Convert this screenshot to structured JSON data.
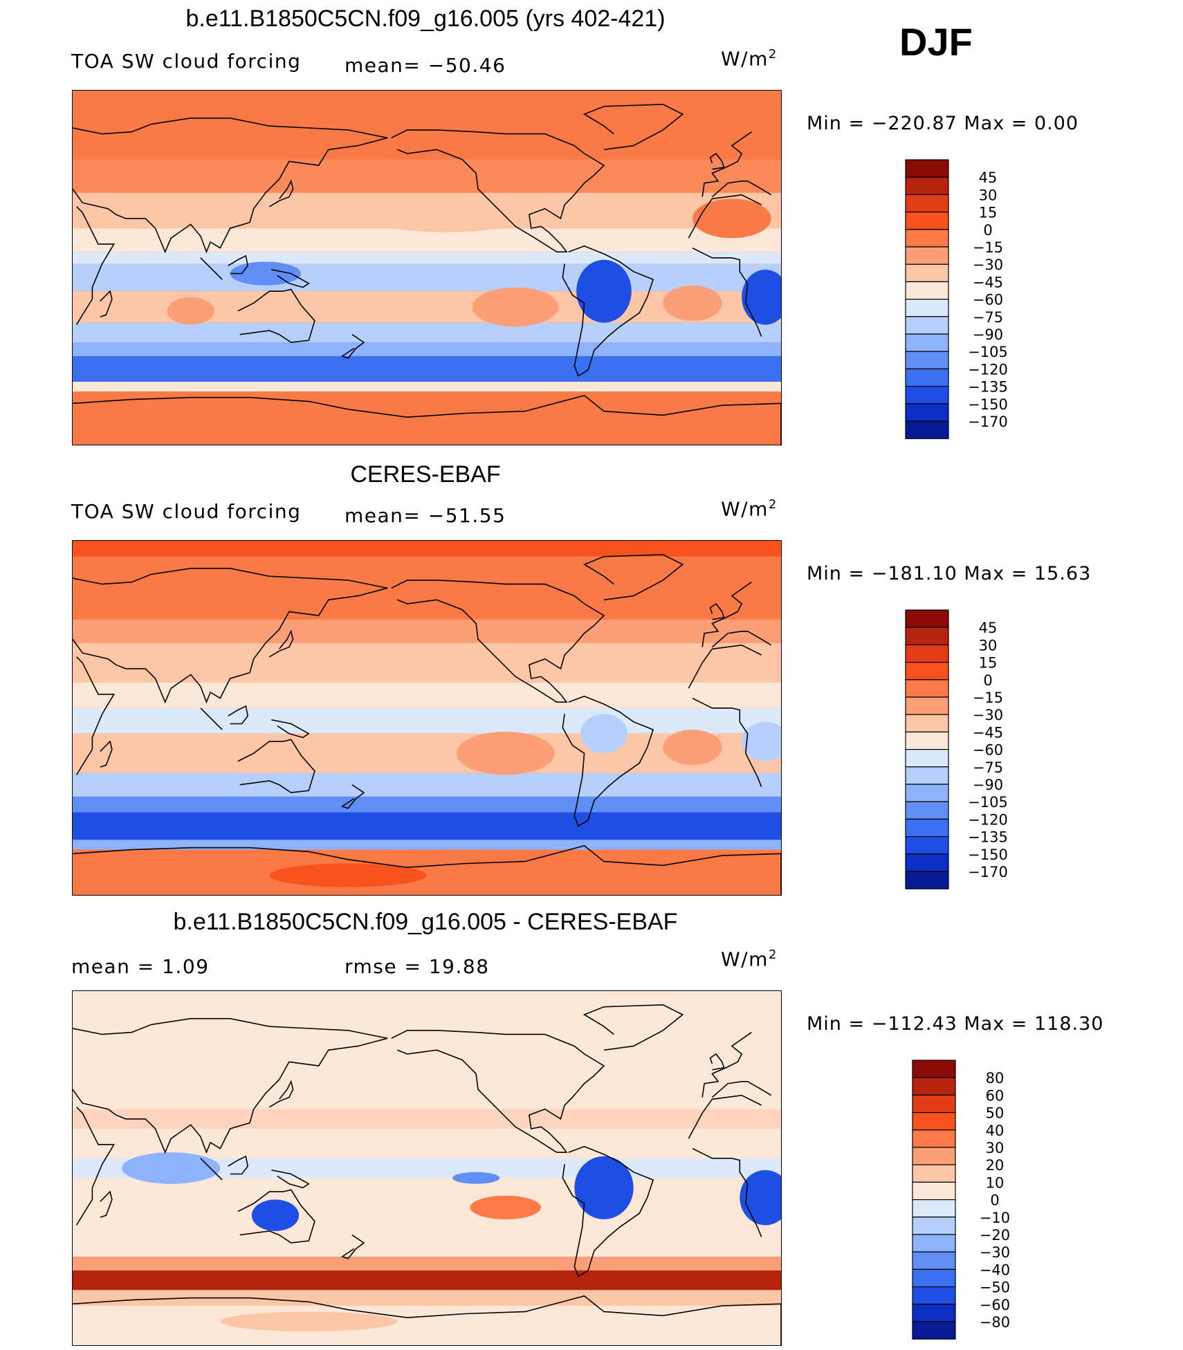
{
  "season_label": "DJF",
  "colors": {
    "land_ocean_orange": "#f97a45",
    "outline": "#000000"
  },
  "panels": [
    {
      "title": "b.e11.B1850C5CN.f09_g16.005 (yrs 402-421)",
      "left_label": "TOA SW cloud forcing",
      "stat_label": "mean=  −50.46",
      "units": "W/m",
      "units_sup": "2",
      "minmax": "Min  =  −220.87  Max  =     0.00",
      "colorbar": {
        "labels": [
          "45",
          "30",
          "15",
          "0",
          "−15",
          "−30",
          "−45",
          "−60",
          "−75",
          "−90",
          "−105",
          "−120",
          "−135",
          "−150",
          "−170"
        ],
        "colors": [
          "#8b0b06",
          "#b7240d",
          "#df3b14",
          "#f8531f",
          "#fb7a47",
          "#fb9f78",
          "#fdc6a6",
          "#fde8d7",
          "#dbe9fb",
          "#b6d0fb",
          "#8eb2fb",
          "#5f8ff5",
          "#3a70f0",
          "#1e4fe5",
          "#0a2fc2",
          "#061996"
        ]
      },
      "map": {
        "base": "#f97a45",
        "bands": [
          {
            "lat_from": 90,
            "lat_to": 55,
            "color": "#f97a45"
          },
          {
            "lat_from": 55,
            "lat_to": 38,
            "color": "#fb8a5a"
          },
          {
            "lat_from": 38,
            "lat_to": 20,
            "color": "#fdc6a6"
          },
          {
            "lat_from": 20,
            "lat_to": 8,
            "color": "#fde8d7"
          },
          {
            "lat_from": 8,
            "lat_to": 2,
            "color": "#dbe9fb"
          },
          {
            "lat_from": 2,
            "lat_to": -12,
            "color": "#b6d0fb"
          },
          {
            "lat_from": -12,
            "lat_to": -28,
            "color": "#fdc6a6"
          },
          {
            "lat_from": -28,
            "lat_to": -38,
            "color": "#b6d0fb"
          },
          {
            "lat_from": -38,
            "lat_to": -45,
            "color": "#8eb2fb"
          },
          {
            "lat_from": -45,
            "lat_to": -58,
            "color": "#3a70f0"
          },
          {
            "lat_from": -58,
            "lat_to": -63,
            "color": "#fde8d7"
          },
          {
            "lat_from": -63,
            "lat_to": -90,
            "color": "#f97a45"
          }
        ],
        "blobs": [
          {
            "lon": 220,
            "lat": 28,
            "rx": 45,
            "ry": 10,
            "color": "#fdc6a6"
          },
          {
            "lon": 255,
            "lat": -20,
            "rx": 22,
            "ry": 10,
            "color": "#fb9f78"
          },
          {
            "lon": 345,
            "lat": -18,
            "rx": 15,
            "ry": 9,
            "color": "#fb9f78"
          },
          {
            "lon": 90,
            "lat": -22,
            "rx": 12,
            "ry": 7,
            "color": "#fb9f78"
          },
          {
            "lon": 22,
            "lat": -15,
            "rx": 12,
            "ry": 14,
            "color": "#1e4fe5"
          },
          {
            "lon": 300,
            "lat": -12,
            "rx": 14,
            "ry": 16,
            "color": "#1e4fe5"
          },
          {
            "lon": 128,
            "lat": -3,
            "rx": 18,
            "ry": 6,
            "color": "#5f8ff5"
          },
          {
            "lon": 5,
            "lat": 25,
            "rx": 20,
            "ry": 10,
            "color": "#f97a45"
          }
        ]
      }
    },
    {
      "title": "CERES-EBAF",
      "left_label": "TOA SW cloud forcing",
      "stat_label": "mean=  −51.55",
      "units": "W/m",
      "units_sup": "2",
      "minmax": "Min  =  −181.10  Max  =    15.63",
      "colorbar": {
        "labels": [
          "45",
          "30",
          "15",
          "0",
          "−15",
          "−30",
          "−45",
          "−60",
          "−75",
          "−90",
          "−105",
          "−120",
          "−135",
          "−150",
          "−170"
        ],
        "colors": [
          "#8b0b06",
          "#b7240d",
          "#df3b14",
          "#f8531f",
          "#fb7a47",
          "#fb9f78",
          "#fdc6a6",
          "#fde8d7",
          "#dbe9fb",
          "#b6d0fb",
          "#8eb2fb",
          "#5f8ff5",
          "#3a70f0",
          "#1e4fe5",
          "#0a2fc2",
          "#061996"
        ]
      },
      "map": {
        "base": "#f97a45",
        "bands": [
          {
            "lat_from": 90,
            "lat_to": 82,
            "color": "#f8531f"
          },
          {
            "lat_from": 82,
            "lat_to": 50,
            "color": "#f97a45"
          },
          {
            "lat_from": 50,
            "lat_to": 38,
            "color": "#fb9f78"
          },
          {
            "lat_from": 38,
            "lat_to": 18,
            "color": "#fdc6a6"
          },
          {
            "lat_from": 18,
            "lat_to": 5,
            "color": "#fde8d7"
          },
          {
            "lat_from": 5,
            "lat_to": -8,
            "color": "#dbe9fb"
          },
          {
            "lat_from": -8,
            "lat_to": -28,
            "color": "#fdc6a6"
          },
          {
            "lat_from": -28,
            "lat_to": -40,
            "color": "#b6d0fb"
          },
          {
            "lat_from": -40,
            "lat_to": -48,
            "color": "#5f8ff5"
          },
          {
            "lat_from": -48,
            "lat_to": -62,
            "color": "#1e4fe5"
          },
          {
            "lat_from": -62,
            "lat_to": -67,
            "color": "#8eb2fb"
          },
          {
            "lat_from": -67,
            "lat_to": -90,
            "color": "#f97a45"
          }
        ],
        "blobs": [
          {
            "lon": 220,
            "lat": 28,
            "rx": 45,
            "ry": 10,
            "color": "#fdc6a6"
          },
          {
            "lon": 250,
            "lat": -18,
            "rx": 25,
            "ry": 11,
            "color": "#fb9f78"
          },
          {
            "lon": 345,
            "lat": -15,
            "rx": 15,
            "ry": 9,
            "color": "#fb9f78"
          },
          {
            "lon": 22,
            "lat": -12,
            "rx": 12,
            "ry": 10,
            "color": "#b6d0fb"
          },
          {
            "lon": 300,
            "lat": -8,
            "rx": 12,
            "ry": 10,
            "color": "#b6d0fb"
          },
          {
            "lon": 170,
            "lat": -80,
            "rx": 40,
            "ry": 6,
            "color": "#f8531f"
          }
        ]
      }
    },
    {
      "title": "b.e11.B1850C5CN.f09_g16.005 - CERES-EBAF",
      "left_label": "mean  =     1.09",
      "stat_label": "rmse  =    19.88",
      "units": "W/m",
      "units_sup": "2",
      "minmax": "Min  =  −112.43  Max  =  118.30",
      "colorbar": {
        "labels": [
          "80",
          "60",
          "50",
          "40",
          "30",
          "20",
          "10",
          "0",
          "−10",
          "−20",
          "−30",
          "−40",
          "−50",
          "−60",
          "−80"
        ],
        "colors": [
          "#8b0b06",
          "#b7240d",
          "#df3b14",
          "#f8531f",
          "#fb7a47",
          "#fb9f78",
          "#fdc6a6",
          "#fde8d7",
          "#dbe9fb",
          "#b6d0fb",
          "#8eb2fb",
          "#5f8ff5",
          "#3a70f0",
          "#1e4fe5",
          "#0a2fc2",
          "#061996"
        ]
      },
      "map": {
        "base": "#fde8d7",
        "bands": [
          {
            "lat_from": 90,
            "lat_to": 30,
            "color": "#fde8d7"
          },
          {
            "lat_from": 30,
            "lat_to": 20,
            "color": "#fdd5bf"
          },
          {
            "lat_from": 20,
            "lat_to": 5,
            "color": "#fde8d7"
          },
          {
            "lat_from": 5,
            "lat_to": -5,
            "color": "#dbe9fb"
          },
          {
            "lat_from": -5,
            "lat_to": -45,
            "color": "#fde8d7"
          },
          {
            "lat_from": -45,
            "lat_to": -52,
            "color": "#fb9f78"
          },
          {
            "lat_from": -52,
            "lat_to": -62,
            "color": "#b7240d"
          },
          {
            "lat_from": -62,
            "lat_to": -70,
            "color": "#fdc6a6"
          },
          {
            "lat_from": -70,
            "lat_to": -90,
            "color": "#fde8d7"
          }
        ],
        "blobs": [
          {
            "lon": 22,
            "lat": -15,
            "rx": 13,
            "ry": 14,
            "color": "#1e4fe5"
          },
          {
            "lon": 300,
            "lat": -10,
            "rx": 15,
            "ry": 16,
            "color": "#1e4fe5"
          },
          {
            "lon": 133,
            "lat": -24,
            "rx": 12,
            "ry": 8,
            "color": "#1e4fe5"
          },
          {
            "lon": 80,
            "lat": 0,
            "rx": 25,
            "ry": 8,
            "color": "#8eb2fb"
          },
          {
            "lon": 250,
            "lat": -20,
            "rx": 18,
            "ry": 6,
            "color": "#fb7a47"
          },
          {
            "lon": 235,
            "lat": -5,
            "rx": 12,
            "ry": 3,
            "color": "#5f8ff5"
          },
          {
            "lon": 150,
            "lat": -78,
            "rx": 45,
            "ry": 5,
            "color": "#fdc6a6"
          }
        ]
      }
    }
  ]
}
